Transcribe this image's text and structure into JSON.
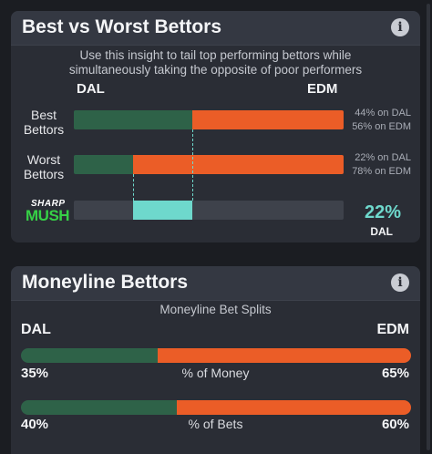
{
  "best_worst": {
    "title": "Best vs Worst Bettors",
    "info_icon": "info-icon",
    "subtitle_line1": "Use this insight to tail top performing bettors while",
    "subtitle_line2": "simultaneously taking the opposite of poor performers",
    "team_left": "DAL",
    "team_right": "EDM",
    "best": {
      "label_line1": "Best",
      "label_line2": "Bettors",
      "left_pct": 44,
      "right_pct": 56,
      "left_text": "44% on DAL",
      "right_text": "56% on EDM"
    },
    "worst": {
      "label_line1": "Worst",
      "label_line2": "Bettors",
      "left_pct": 22,
      "right_pct": 78,
      "left_text": "22% on DAL",
      "right_text": "78% on EDM"
    },
    "sharp": {
      "logo_top": "SHARP",
      "logo_bottom": "MUSH",
      "pct_text": "22%",
      "team": "DAL",
      "range_start": 22,
      "range_end": 44
    }
  },
  "moneyline": {
    "title": "Moneyline Bettors",
    "info_icon": "info-icon",
    "subtitle": "Moneyline Bet Splits",
    "team_left": "DAL",
    "team_right": "EDM",
    "money": {
      "label": "% of Money",
      "left_pct": 35,
      "right_pct": 65,
      "left_text": "35%",
      "right_text": "65%"
    },
    "bets": {
      "label": "% of Bets",
      "left_pct": 40,
      "right_pct": 60,
      "left_text": "40%",
      "right_text": "60%"
    }
  },
  "colors": {
    "dal_green": "#2e6248",
    "edm_orange": "#eb5d27",
    "sharp_teal": "#6ed8cc",
    "track_gray": "#3e424b"
  }
}
